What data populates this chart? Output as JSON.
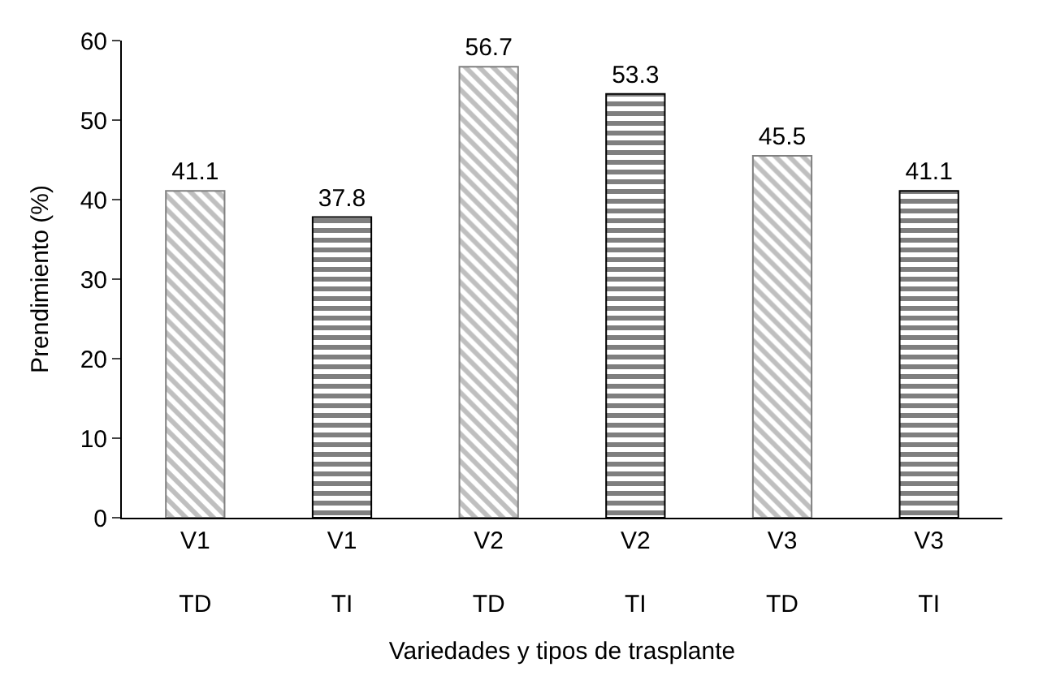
{
  "chart_data": {
    "type": "bar",
    "categories": [
      "V1\nTD",
      "V1\nTI",
      "V2\nTD",
      "V2\nTI",
      "V3\nTD",
      "V3\nTI"
    ],
    "values": [
      41.1,
      37.8,
      56.7,
      53.3,
      45.5,
      41.1
    ],
    "colors": [
      "#808080",
      "#000000",
      "#808080",
      "#000000",
      "#808080",
      "#000000"
    ],
    "xlabel": "Variedades y tipos de trasplante",
    "ylabel": "Prendimiento (%)",
    "ylim": [
      0,
      60
    ],
    "yticks": [
      0,
      10,
      20,
      30,
      40,
      50,
      60
    ],
    "data_labels": true
  }
}
